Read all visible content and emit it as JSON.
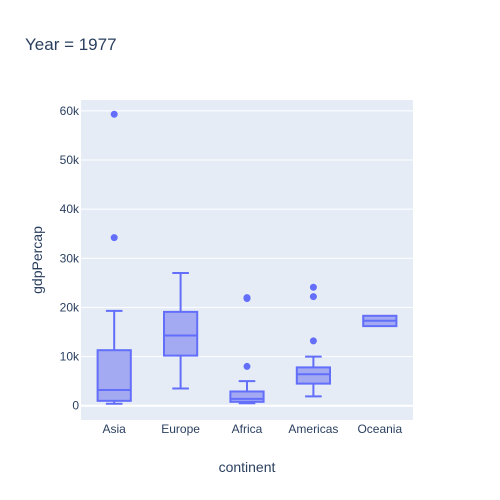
{
  "chart_data": {
    "type": "box",
    "title": "Year = 1977",
    "xlabel": "continent",
    "ylabel": "gdpPercap",
    "categories": [
      "Asia",
      "Europe",
      "Africa",
      "Americas",
      "Oceania"
    ],
    "ylim": [
      -2900,
      62200
    ],
    "y_ticks": [
      0,
      10000,
      20000,
      30000,
      40000,
      50000,
      60000
    ],
    "y_tick_labels": [
      "0",
      "10k",
      "20k",
      "30k",
      "40k",
      "50k",
      "60k"
    ],
    "boxes": [
      {
        "category": "Asia",
        "lower_fence": 400,
        "q1": 1000,
        "median": 3200,
        "q3": 11300,
        "upper_fence": 19300,
        "outliers": [
          34200,
          59300
        ]
      },
      {
        "category": "Europe",
        "lower_fence": 3500,
        "q1": 10200,
        "median": 14300,
        "q3": 19100,
        "upper_fence": 27000,
        "outliers": []
      },
      {
        "category": "Africa",
        "lower_fence": 500,
        "q1": 800,
        "median": 1400,
        "q3": 2900,
        "upper_fence": 5000,
        "outliers": [
          8000,
          21800,
          22000
        ]
      },
      {
        "category": "Americas",
        "lower_fence": 1900,
        "q1": 4500,
        "median": 6400,
        "q3": 7800,
        "upper_fence": 10000,
        "outliers": [
          13200,
          22200,
          24100
        ]
      },
      {
        "category": "Oceania",
        "lower_fence": 16200,
        "q1": 16200,
        "median": 17300,
        "q3": 18300,
        "upper_fence": 18300,
        "outliers": []
      }
    ],
    "grid": true,
    "colors": {
      "box_line": "#636efa",
      "box_fill": "#a3aaf2",
      "plot_bg": "#e5ecf6",
      "grid": "#ffffff",
      "text": "#2a3f5f"
    }
  }
}
